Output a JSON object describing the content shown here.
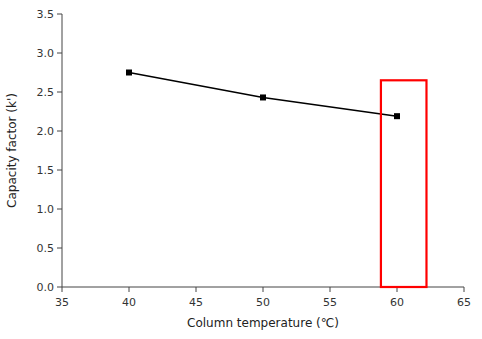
{
  "chart_data": {
    "type": "line",
    "x": [
      40,
      50,
      60
    ],
    "values": [
      2.75,
      2.43,
      2.19
    ],
    "xlabel": "Column temperature (℃)",
    "ylabel": "Capacity factor (k')",
    "xlim": [
      35,
      65
    ],
    "ylim": [
      0,
      3.5
    ],
    "xticks": [
      35,
      40,
      45,
      50,
      55,
      60,
      65
    ],
    "yticks": [
      {
        "value": 0,
        "label": "0.0"
      },
      0.5,
      {
        "value": 1,
        "label": "1.0"
      },
      1.5,
      {
        "value": 2,
        "label": "2.0"
      },
      2.5,
      {
        "value": 3,
        "label": "3.0"
      },
      3.5
    ],
    "color": "#000000",
    "marker": "square",
    "line_style": "solid",
    "grid": false,
    "highlight": {
      "x": 58.8,
      "y": 0,
      "width": 3.4,
      "height": 2.65,
      "color": "red"
    }
  }
}
